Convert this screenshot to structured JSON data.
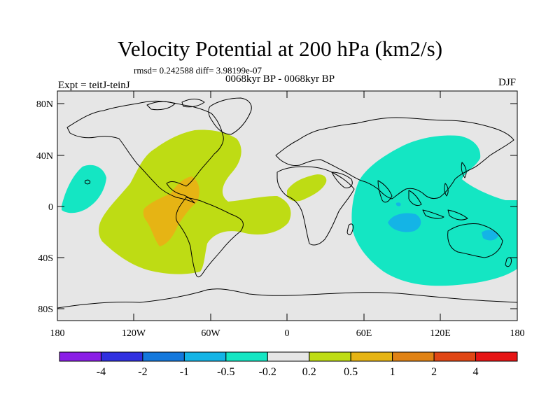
{
  "header": {
    "title": "Velocity Potential at 200 hPa (km2/s)",
    "stats": "rmsd= 0.242588 diff= 3.98199e-07",
    "period": "0068kyr BP - 0068kyr BP",
    "experiment": "Expt = teitJ-teinJ",
    "season": "DJF"
  },
  "axes": {
    "y_ticks": [
      "80N",
      "40N",
      "0",
      "40S",
      "80S"
    ],
    "x_ticks": [
      "180",
      "120W",
      "60W",
      "0",
      "60E",
      "120E",
      "180"
    ]
  },
  "colorbar": {
    "colors": [
      "#8a1ee6",
      "#3030e0",
      "#1478dc",
      "#14b4e6",
      "#14e6c3",
      "#e6e6e6",
      "#bedc14",
      "#e6b414",
      "#e08214",
      "#e04614",
      "#e61414"
    ],
    "labels": [
      "-4",
      "-2",
      "-1",
      "-0.5",
      "-0.2",
      "0.2",
      "0.5",
      "1",
      "2",
      "4"
    ]
  },
  "map": {
    "background": "#e6e6e6",
    "regions": [
      {
        "name": "positive-region-americas-atlantic",
        "level": "0.2 to 0.5"
      },
      {
        "name": "positive-region-africa",
        "level": "0.2 to 0.5"
      },
      {
        "name": "positive-core-central-america",
        "level": "0.5 to 1"
      },
      {
        "name": "negative-region-indo-pacific",
        "level": "-0.5 to -0.2"
      },
      {
        "name": "negative-region-central-pacific",
        "level": "-0.5 to -0.2"
      },
      {
        "name": "negative-core-indian-ocean",
        "level": "-1 to -0.5"
      }
    ]
  }
}
